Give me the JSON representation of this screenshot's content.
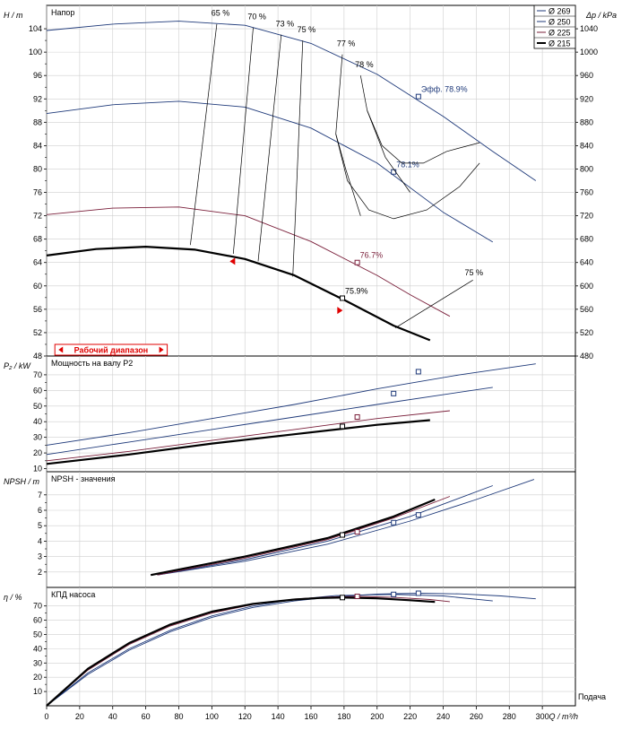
{
  "x_axis": {
    "ticks": [
      0,
      20,
      40,
      60,
      80,
      100,
      120,
      140,
      160,
      180,
      200,
      220,
      240,
      260,
      280,
      300
    ],
    "label": "Q / m³/h",
    "end_label": "Подача"
  },
  "legend": [
    {
      "label": "Ø 269",
      "color": "#1f3a7a"
    },
    {
      "label": "Ø 250",
      "color": "#1f3a7a"
    },
    {
      "label": "Ø 225",
      "color": "#7a1f3a"
    },
    {
      "label": "Ø 215",
      "color": "#000000"
    }
  ],
  "chart_data": [
    {
      "type": "line",
      "title": "Напор",
      "ylabel": "H / m",
      "ylim": [
        48,
        108
      ],
      "y_ticks": [
        48,
        52,
        56,
        60,
        64,
        68,
        72,
        76,
        80,
        84,
        88,
        92,
        96,
        100,
        104
      ],
      "secondary_axis": {
        "label": "Δp / kPa",
        "ticks": [
          480,
          520,
          560,
          600,
          640,
          680,
          720,
          760,
          800,
          840,
          880,
          920,
          960,
          1000,
          1040
        ]
      },
      "operating_range_label": "Рабочий диапазон",
      "series": [
        {
          "name": "Ø 269",
          "color": "#1f3a7a",
          "width": 0.9,
          "x": [
            0,
            40,
            80,
            120,
            160,
            200,
            240,
            270,
            296
          ],
          "y": [
            103.7,
            104.8,
            105.3,
            104.6,
            101.5,
            96.2,
            89.0,
            83.0,
            78.0
          ]
        },
        {
          "name": "Ø 250",
          "color": "#1f3a7a",
          "width": 0.9,
          "x": [
            0,
            40,
            80,
            120,
            160,
            200,
            240,
            270
          ],
          "y": [
            89.5,
            91.0,
            91.6,
            90.6,
            87.0,
            81.0,
            72.6,
            67.5
          ]
        },
        {
          "name": "Ø 225",
          "color": "#7a1f3a",
          "width": 0.9,
          "x": [
            0,
            40,
            80,
            120,
            160,
            200,
            220,
            244
          ],
          "y": [
            72.2,
            73.3,
            73.5,
            72.0,
            67.6,
            61.8,
            58.5,
            54.8
          ]
        },
        {
          "name": "Ø 215",
          "color": "#000000",
          "width": 2.2,
          "x": [
            0,
            30,
            60,
            90,
            120,
            150,
            180,
            210,
            232
          ],
          "y": [
            65.2,
            66.3,
            66.7,
            66.2,
            64.6,
            61.8,
            57.6,
            53.2,
            50.7
          ]
        }
      ],
      "efficiency_labels": [
        "65 %",
        "70 %",
        "73 %",
        "75 %",
        "77 %",
        "78 %",
        "75 %"
      ],
      "points": [
        {
          "label": "Эфф. 78.9%",
          "x": 225,
          "y": 92.4,
          "color": "#1f3a7a"
        },
        {
          "label": "78.1%",
          "x": 210,
          "y": 79.5,
          "color": "#1f3a7a"
        },
        {
          "label": "76.7%",
          "x": 188,
          "y": 64.0,
          "color": "#7a1f3a"
        },
        {
          "label": "75.9%",
          "x": 179,
          "y": 57.9,
          "color": "#000000"
        }
      ]
    },
    {
      "type": "line",
      "title": "Мощность на валу P2",
      "ylabel": "P₂ / kW",
      "ylim": [
        8,
        82
      ],
      "y_ticks": [
        10,
        20,
        30,
        40,
        50,
        60,
        70
      ],
      "series": [
        {
          "name": "Ø 269",
          "color": "#1f3a7a",
          "width": 0.9,
          "x": [
            0,
            50,
            100,
            150,
            200,
            250,
            296
          ],
          "y": [
            25,
            33,
            42,
            51,
            61,
            70,
            77
          ]
        },
        {
          "name": "Ø 250",
          "color": "#1f3a7a",
          "width": 0.9,
          "x": [
            0,
            50,
            100,
            150,
            200,
            270
          ],
          "y": [
            19,
            27,
            35,
            43,
            51,
            62
          ]
        },
        {
          "name": "Ø 225",
          "color": "#7a1f3a",
          "width": 0.9,
          "x": [
            0,
            50,
            100,
            150,
            200,
            244
          ],
          "y": [
            15,
            21,
            28,
            35,
            42,
            47
          ]
        },
        {
          "name": "Ø 215",
          "color": "#000000",
          "width": 2.2,
          "x": [
            0,
            50,
            100,
            150,
            200,
            232
          ],
          "y": [
            13,
            19,
            26,
            32,
            38,
            41
          ]
        }
      ],
      "points": [
        {
          "x": 225,
          "y": 72,
          "color": "#1f3a7a"
        },
        {
          "x": 210,
          "y": 58,
          "color": "#1f3a7a"
        },
        {
          "x": 188,
          "y": 43,
          "color": "#7a1f3a"
        },
        {
          "x": 179,
          "y": 37,
          "color": "#000000"
        }
      ]
    },
    {
      "type": "line",
      "title": "NPSH - значения",
      "ylabel": "NPSH / m",
      "ylim": [
        1,
        8.5
      ],
      "y_ticks": [
        2,
        3,
        4,
        5,
        6,
        7
      ],
      "series": [
        {
          "name": "Ø 269",
          "color": "#1f3a7a",
          "width": 0.9,
          "x": [
            67,
            120,
            170,
            220,
            260,
            295
          ],
          "y": [
            1.8,
            2.7,
            3.8,
            5.3,
            6.7,
            8.0
          ]
        },
        {
          "name": "Ø 250",
          "color": "#1f3a7a",
          "width": 0.9,
          "x": [
            67,
            120,
            170,
            220,
            270
          ],
          "y": [
            1.8,
            2.8,
            4.0,
            5.6,
            7.6
          ]
        },
        {
          "name": "Ø 225",
          "color": "#7a1f3a",
          "width": 0.9,
          "x": [
            67,
            120,
            170,
            210,
            244
          ],
          "y": [
            1.8,
            2.9,
            4.1,
            5.5,
            6.9
          ]
        },
        {
          "name": "Ø 215",
          "color": "#000000",
          "width": 2.2,
          "x": [
            63,
            120,
            170,
            210,
            235
          ],
          "y": [
            1.8,
            3.0,
            4.2,
            5.6,
            6.7
          ]
        }
      ],
      "points": [
        {
          "x": 225,
          "y": 5.7,
          "color": "#1f3a7a"
        },
        {
          "x": 210,
          "y": 5.2,
          "color": "#1f3a7a"
        },
        {
          "x": 188,
          "y": 4.6,
          "color": "#7a1f3a"
        },
        {
          "x": 179,
          "y": 4.4,
          "color": "#000000"
        }
      ]
    },
    {
      "type": "line",
      "title": "КПД насоса",
      "ylabel": "η / %",
      "ylim": [
        0,
        83
      ],
      "y_ticks": [
        10,
        20,
        30,
        40,
        50,
        60,
        70
      ],
      "series": [
        {
          "name": "Ø 269",
          "color": "#1f3a7a",
          "width": 0.9,
          "x": [
            0,
            25,
            50,
            75,
            100,
            125,
            150,
            175,
            200,
            225,
            250,
            275,
            296
          ],
          "y": [
            0,
            22,
            39,
            52,
            62,
            69,
            73.5,
            76.5,
            78.3,
            78.9,
            78.5,
            77,
            75
          ]
        },
        {
          "name": "Ø 250",
          "color": "#1f3a7a",
          "width": 0.9,
          "x": [
            0,
            25,
            50,
            75,
            100,
            125,
            150,
            175,
            210,
            240,
            270
          ],
          "y": [
            0,
            23,
            40,
            53,
            63,
            70,
            74.5,
            77.3,
            78.1,
            77,
            73.5
          ]
        },
        {
          "name": "Ø 225",
          "color": "#7a1f3a",
          "width": 0.9,
          "x": [
            0,
            25,
            50,
            75,
            100,
            125,
            150,
            170,
            188,
            210,
            232,
            244
          ],
          "y": [
            0,
            25,
            43,
            56,
            65,
            71,
            74.8,
            76.3,
            76.7,
            76,
            74.5,
            73
          ]
        },
        {
          "name": "Ø 215",
          "color": "#000000",
          "width": 2.2,
          "x": [
            0,
            25,
            50,
            75,
            100,
            125,
            150,
            165,
            179,
            200,
            220,
            235
          ],
          "y": [
            0,
            26,
            44,
            57,
            66,
            71.5,
            74.5,
            75.6,
            75.9,
            75.3,
            74,
            72.8
          ]
        }
      ],
      "points": [
        {
          "x": 225,
          "y": 78.9,
          "color": "#1f3a7a"
        },
        {
          "x": 210,
          "y": 78.1,
          "color": "#1f3a7a"
        },
        {
          "x": 188,
          "y": 76.7,
          "color": "#7a1f3a"
        },
        {
          "x": 179,
          "y": 75.9,
          "color": "#000000"
        }
      ]
    }
  ]
}
